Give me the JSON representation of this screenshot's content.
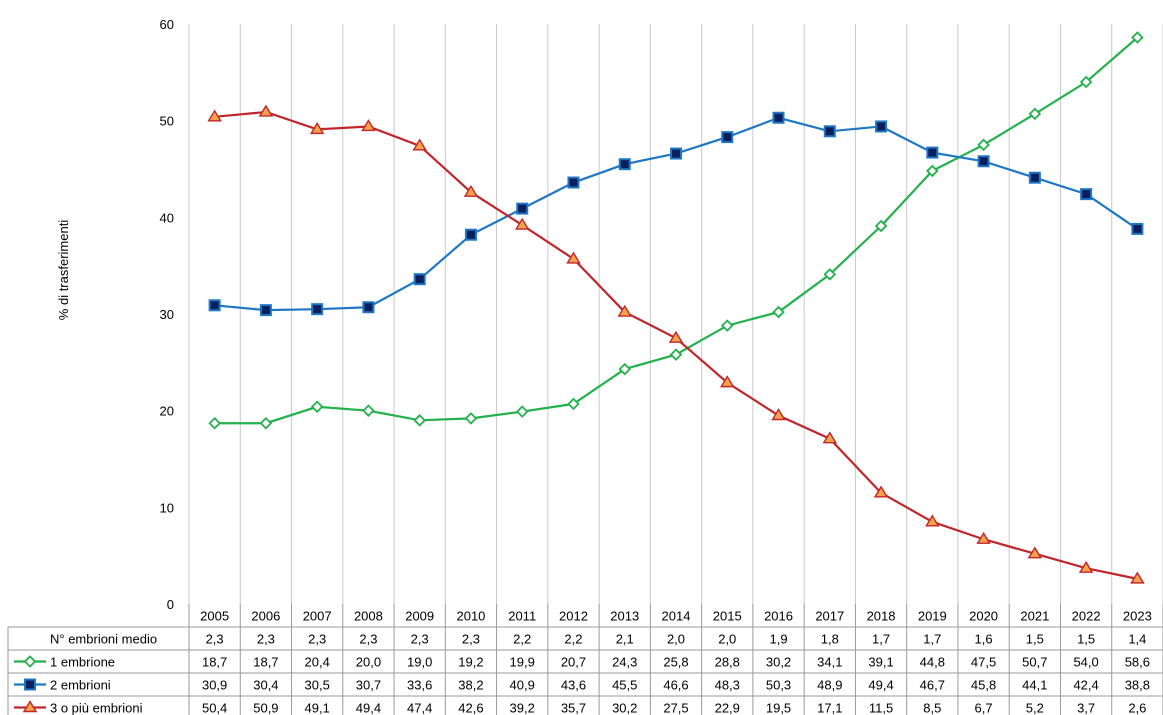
{
  "chart_data": {
    "type": "line",
    "ylabel": "% di trasferimenti",
    "ylim": [
      0,
      60
    ],
    "yticks": [
      0,
      10,
      20,
      30,
      40,
      50,
      60
    ],
    "grid": "vertical",
    "legend": "data-table",
    "categories": [
      "2005",
      "2006",
      "2007",
      "2008",
      "2009",
      "2010",
      "2011",
      "2012",
      "2013",
      "2014",
      "2015",
      "2016",
      "2017",
      "2018",
      "2019",
      "2020",
      "2021",
      "2022",
      "2023"
    ],
    "table_row_label": "N° embrioni medio",
    "table_row_values": [
      "2,3",
      "2,3",
      "2,3",
      "2,3",
      "2,3",
      "2,3",
      "2,2",
      "2,2",
      "2,1",
      "2,0",
      "2,0",
      "1,9",
      "1,8",
      "1,7",
      "1,7",
      "1,6",
      "1,5",
      "1,5",
      "1,4"
    ],
    "series": [
      {
        "name": "1 embrione",
        "color": "#22b14c",
        "marker": "diamond",
        "values": [
          18.7,
          18.7,
          20.4,
          20.0,
          19.0,
          19.2,
          19.9,
          20.7,
          24.3,
          25.8,
          28.8,
          30.2,
          34.1,
          39.1,
          44.8,
          47.5,
          50.7,
          54.0,
          58.6
        ],
        "labels": [
          "18,7",
          "18,7",
          "20,4",
          "20,0",
          "19,0",
          "19,2",
          "19,9",
          "20,7",
          "24,3",
          "25,8",
          "28,8",
          "30,2",
          "34,1",
          "39,1",
          "44,8",
          "47,5",
          "50,7",
          "54,0",
          "58,6"
        ]
      },
      {
        "name": "2 embrioni",
        "color": "#1f77c4",
        "marker": "square",
        "values": [
          30.9,
          30.4,
          30.5,
          30.7,
          33.6,
          38.2,
          40.9,
          43.6,
          45.5,
          46.6,
          48.3,
          50.3,
          48.9,
          49.4,
          46.7,
          45.8,
          44.1,
          42.4,
          38.8
        ],
        "labels": [
          "30,9",
          "30,4",
          "30,5",
          "30,7",
          "33,6",
          "38,2",
          "40,9",
          "43,6",
          "45,5",
          "46,6",
          "48,3",
          "50,3",
          "48,9",
          "49,4",
          "46,7",
          "45,8",
          "44,1",
          "42,4",
          "38,8"
        ]
      },
      {
        "name": "3 o più embrioni",
        "color": "#c0262c",
        "marker": "triangle",
        "values": [
          50.4,
          50.9,
          49.1,
          49.4,
          47.4,
          42.6,
          39.2,
          35.7,
          30.2,
          27.5,
          22.9,
          19.5,
          17.1,
          11.5,
          8.5,
          6.7,
          5.2,
          3.7,
          2.6
        ],
        "labels": [
          "50,4",
          "50,9",
          "49,1",
          "49,4",
          "47,4",
          "42,6",
          "39,2",
          "35,7",
          "30,2",
          "27,5",
          "22,9",
          "19,5",
          "17,1",
          "11,5",
          "8,5",
          "6,7",
          "5,2",
          "3,7",
          "2,6"
        ]
      }
    ]
  }
}
